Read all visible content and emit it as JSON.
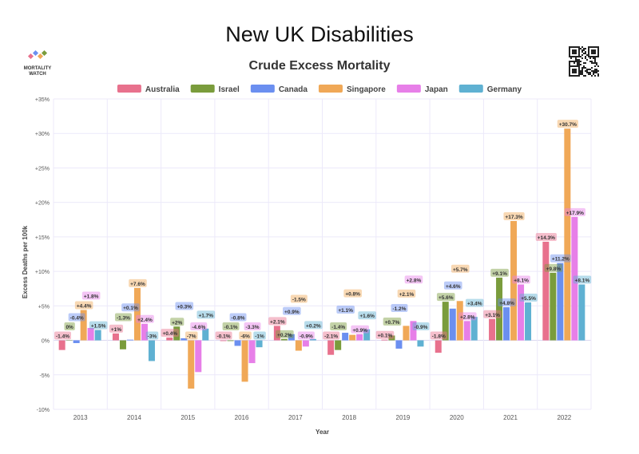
{
  "title": "New UK Disabilities",
  "logo": {
    "line1": "MORTALITY",
    "line2": "WATCH"
  },
  "chart_data": {
    "type": "bar",
    "title": "Crude Excess Mortality",
    "xlabel": "Year",
    "ylabel": "Excess Deaths per 100k",
    "ylim": [
      -10,
      35
    ],
    "yticks": [
      -10,
      -5,
      0,
      5,
      10,
      15,
      20,
      25,
      30,
      35
    ],
    "ytick_labels": [
      "-10%",
      "-5%",
      "0%",
      "+5%",
      "+10%",
      "+15%",
      "+20%",
      "+25%",
      "+30%",
      "+35%"
    ],
    "grid": true,
    "legend_position": "top-center",
    "categories": [
      "2013",
      "2014",
      "2015",
      "2016",
      "2017",
      "2018",
      "2019",
      "2020",
      "2021",
      "2022"
    ],
    "series": [
      {
        "name": "Australia",
        "color": "#e8718d",
        "values": [
          -1.4,
          1.0,
          0.4,
          -0.1,
          2.1,
          -2.1,
          0.1,
          -1.8,
          3.1,
          14.3
        ]
      },
      {
        "name": "Israel",
        "color": "#7a9c3c",
        "values": [
          0.0,
          -1.3,
          2.0,
          -0.1,
          0.2,
          -1.4,
          0.7,
          5.6,
          9.1,
          9.8
        ]
      },
      {
        "name": "Canada",
        "color": "#6b8ff0",
        "values": [
          -0.4,
          0.1,
          0.3,
          -0.8,
          0.9,
          1.1,
          -1.2,
          4.6,
          4.8,
          11.2
        ]
      },
      {
        "name": "Singapore",
        "color": "#f0a857",
        "values": [
          4.4,
          7.6,
          -7.0,
          -6.0,
          -1.5,
          0.8,
          2.1,
          5.7,
          17.3,
          30.7
        ]
      },
      {
        "name": "Japan",
        "color": "#e77fe8",
        "values": [
          1.8,
          2.4,
          -4.6,
          -3.3,
          -0.9,
          0.9,
          2.8,
          2.8,
          8.1,
          17.9
        ]
      },
      {
        "name": "Germany",
        "color": "#5fb1d2",
        "values": [
          1.5,
          -3.0,
          1.7,
          -1.0,
          0.2,
          1.6,
          -0.9,
          3.4,
          5.5,
          8.1
        ]
      }
    ]
  }
}
